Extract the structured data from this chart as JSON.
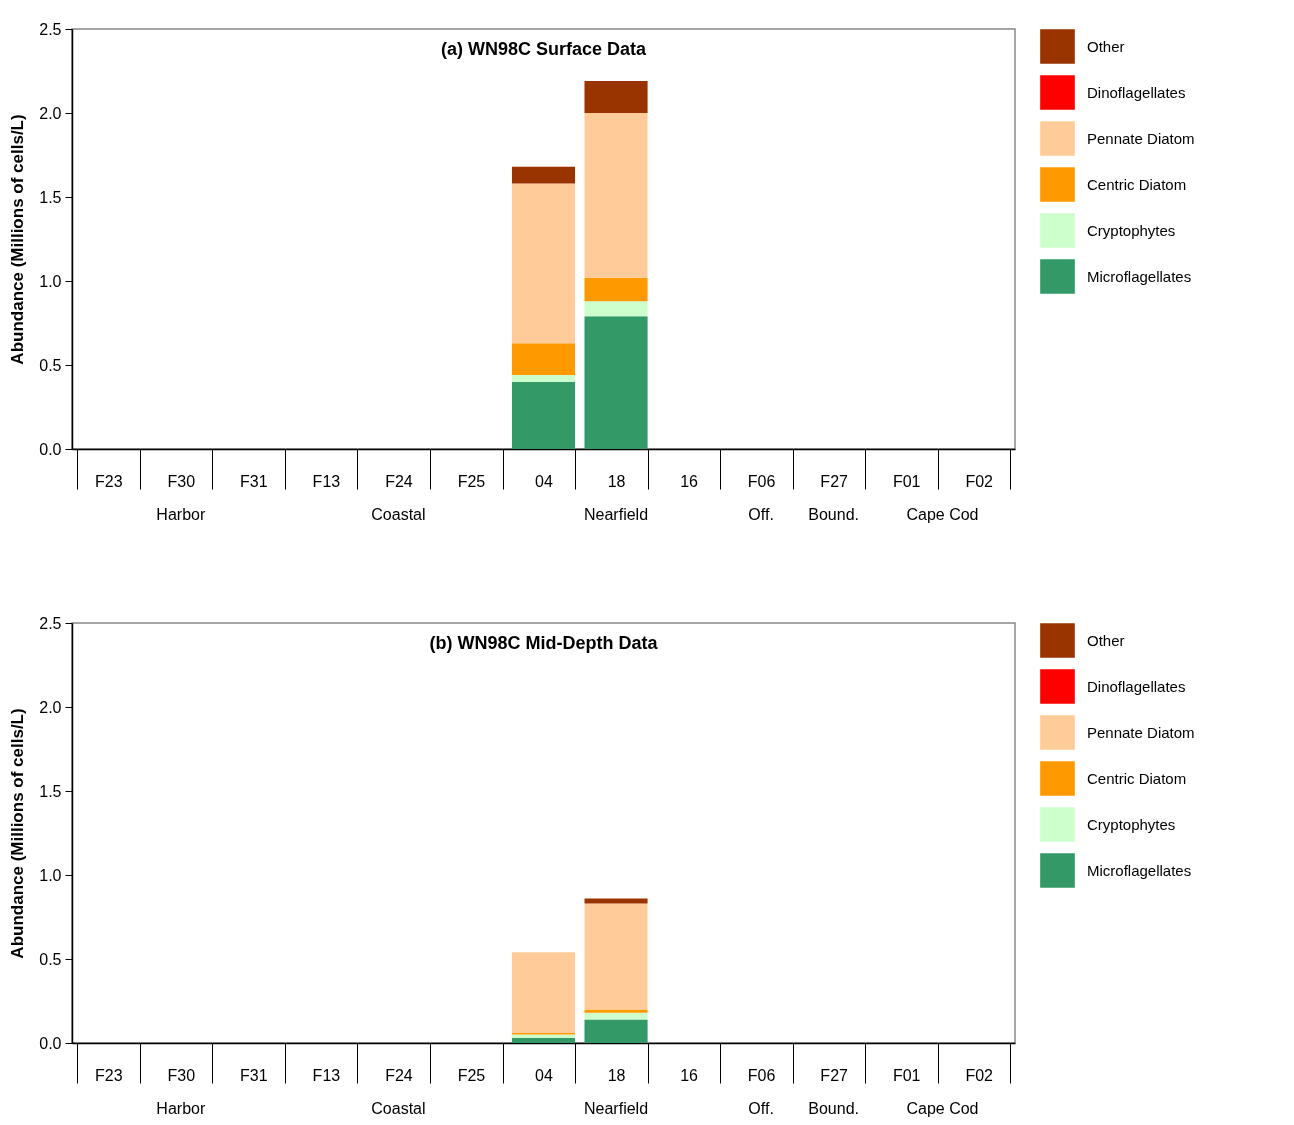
{
  "chart_data": [
    {
      "type": "bar",
      "stacked": true,
      "title": "(a) WN98C Surface Data",
      "ylabel": "Abundance (Millions of cells/L)",
      "categories": [
        "F23",
        "F30",
        "F31",
        "F13",
        "F24",
        "F25",
        "04",
        "18",
        "16",
        "F06",
        "F27",
        "F01",
        "F02"
      ],
      "ylim": [
        0,
        2.5
      ],
      "yticks": [
        {
          "value": 0,
          "label": "0.0"
        },
        0.5,
        {
          "value": 1,
          "label": "1.0"
        },
        1.5,
        {
          "value": 2,
          "label": "2.0"
        },
        2.5
      ],
      "grid": false,
      "legend": "right",
      "series": [
        {
          "name": "Microflagellates",
          "color": "#339966",
          "values": [
            null,
            null,
            null,
            null,
            null,
            null,
            0.4,
            0.79,
            null,
            null,
            null,
            null,
            null
          ]
        },
        {
          "name": "Cryptophytes",
          "color": "#ccffcc",
          "values": [
            null,
            null,
            null,
            null,
            null,
            null,
            0.04,
            0.09,
            null,
            null,
            null,
            null,
            null
          ]
        },
        {
          "name": "Centric Diatom",
          "color": "#ff9900",
          "values": [
            null,
            null,
            null,
            null,
            null,
            null,
            0.19,
            0.14,
            null,
            null,
            null,
            null,
            null
          ]
        },
        {
          "name": "Pennate Diatom",
          "color": "#ffcc99",
          "values": [
            null,
            null,
            null,
            null,
            null,
            null,
            0.95,
            0.98,
            null,
            null,
            null,
            null,
            null
          ]
        },
        {
          "name": "Dinoflagellates",
          "color": "#ff0000",
          "values": [
            null,
            null,
            null,
            null,
            null,
            null,
            null,
            null,
            null,
            null,
            null,
            null,
            null
          ]
        },
        {
          "name": "Other",
          "color": "#993300",
          "values": [
            null,
            null,
            null,
            null,
            null,
            null,
            0.1,
            0.19,
            null,
            null,
            null,
            null,
            null
          ]
        }
      ],
      "annotations": [
        "Harbor",
        "Coastal",
        "Nearfield",
        "Off.",
        "Bound.",
        "Cape Cod"
      ]
    },
    {
      "type": "bar",
      "stacked": true,
      "title": "(b) WN98C Mid-Depth Data",
      "ylabel": "Abundance (Millions of cells/L)",
      "categories": [
        "F23",
        "F30",
        "F31",
        "F13",
        "F24",
        "F25",
        "04",
        "18",
        "16",
        "F06",
        "F27",
        "F01",
        "F02"
      ],
      "ylim": [
        0,
        2.5
      ],
      "yticks": [
        {
          "value": 0,
          "label": "0.0"
        },
        0.5,
        {
          "value": 1,
          "label": "1.0"
        },
        1.5,
        {
          "value": 2,
          "label": "2.0"
        },
        2.5
      ],
      "grid": false,
      "legend": "right",
      "series": [
        {
          "name": "Microflagellates",
          "color": "#339966",
          "values": [
            null,
            null,
            null,
            null,
            null,
            null,
            0.03,
            0.14,
            null,
            null,
            null,
            null,
            null
          ]
        },
        {
          "name": "Cryptophytes",
          "color": "#ccffcc",
          "values": [
            null,
            null,
            null,
            null,
            null,
            null,
            0.02,
            0.04,
            null,
            null,
            null,
            null,
            null
          ]
        },
        {
          "name": "Centric Diatom",
          "color": "#ff9900",
          "values": [
            null,
            null,
            null,
            null,
            null,
            null,
            0.01,
            0.02,
            null,
            null,
            null,
            null,
            null
          ]
        },
        {
          "name": "Pennate Diatom",
          "color": "#ffcc99",
          "values": [
            null,
            null,
            null,
            null,
            null,
            null,
            0.48,
            0.63,
            null,
            null,
            null,
            null,
            null
          ]
        },
        {
          "name": "Dinoflagellates",
          "color": "#ff0000",
          "values": [
            null,
            null,
            null,
            null,
            null,
            null,
            null,
            null,
            null,
            null,
            null,
            null,
            null
          ]
        },
        {
          "name": "Other",
          "color": "#993300",
          "values": [
            null,
            null,
            null,
            null,
            null,
            null,
            null,
            0.03,
            null,
            null,
            null,
            null,
            null
          ]
        }
      ],
      "annotations": [
        "Harbor",
        "Coastal",
        "Nearfield",
        "Off.",
        "Bound.",
        "Cape Cod"
      ]
    }
  ]
}
